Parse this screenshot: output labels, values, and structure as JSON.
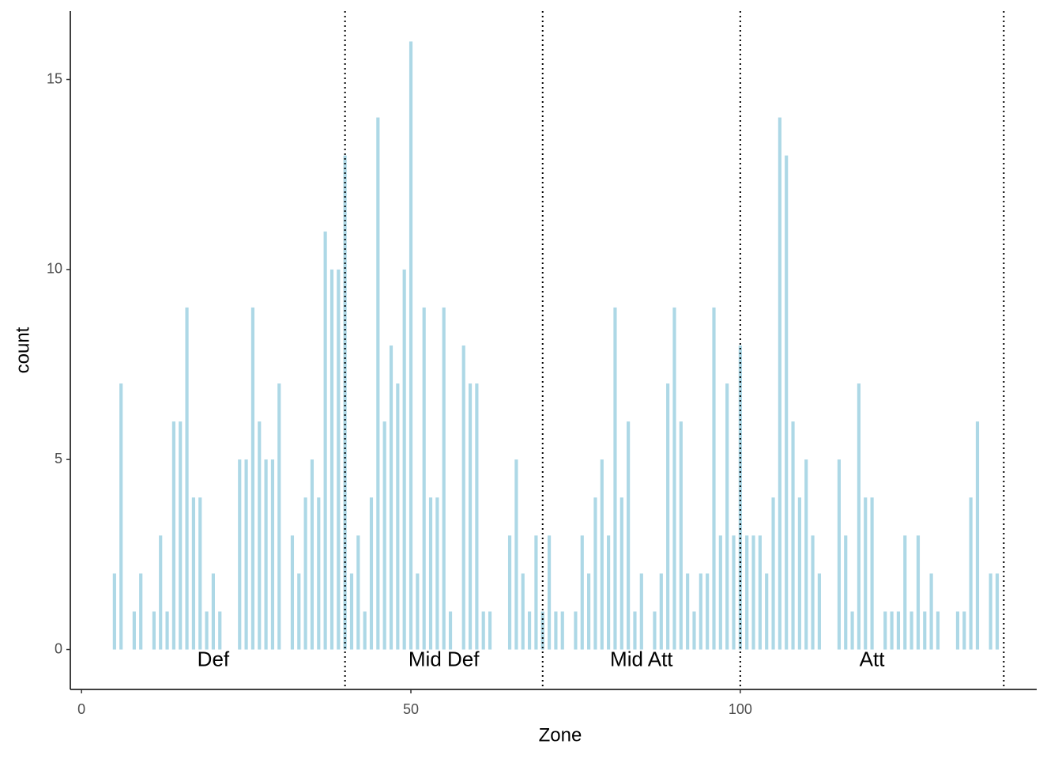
{
  "chart_data": {
    "type": "bar",
    "x_label": "Zone",
    "y_label": "count",
    "color": "#add8e6",
    "x": [
      5,
      6,
      8,
      9,
      11,
      12,
      13,
      14,
      15,
      16,
      17,
      18,
      19,
      20,
      21,
      24,
      25,
      26,
      27,
      28,
      29,
      30,
      32,
      33,
      34,
      35,
      36,
      37,
      38,
      39,
      40,
      41,
      42,
      43,
      44,
      45,
      46,
      47,
      48,
      49,
      50,
      51,
      52,
      53,
      54,
      55,
      56,
      58,
      59,
      60,
      61,
      62,
      65,
      66,
      67,
      68,
      69,
      70,
      71,
      72,
      73,
      75,
      76,
      77,
      78,
      79,
      80,
      81,
      82,
      83,
      84,
      85,
      87,
      88,
      89,
      90,
      91,
      92,
      93,
      94,
      95,
      96,
      97,
      98,
      99,
      100,
      101,
      102,
      103,
      104,
      105,
      106,
      107,
      108,
      109,
      110,
      111,
      112,
      115,
      116,
      117,
      118,
      119,
      120,
      122,
      123,
      124,
      125,
      126,
      127,
      128,
      129,
      130,
      133,
      134,
      135,
      136,
      138,
      139
    ],
    "values": [
      2,
      7,
      1,
      2,
      1,
      3,
      1,
      6,
      6,
      9,
      4,
      4,
      1,
      2,
      1,
      5,
      5,
      9,
      6,
      5,
      5,
      7,
      3,
      2,
      4,
      5,
      4,
      11,
      10,
      10,
      13,
      2,
      3,
      1,
      4,
      14,
      6,
      8,
      7,
      10,
      16,
      2,
      9,
      4,
      4,
      9,
      1,
      8,
      7,
      7,
      1,
      1,
      3,
      5,
      2,
      1,
      3,
      1,
      3,
      1,
      1,
      1,
      3,
      2,
      4,
      5,
      3,
      9,
      4,
      6,
      1,
      2,
      1,
      2,
      7,
      9,
      6,
      2,
      1,
      2,
      2,
      9,
      3,
      7,
      3,
      8,
      3,
      3,
      3,
      2,
      4,
      14,
      13,
      6,
      4,
      5,
      3,
      2,
      5,
      3,
      1,
      7,
      4,
      4,
      1,
      1,
      1,
      3,
      1,
      3,
      1,
      2,
      1,
      1,
      1,
      4,
      6,
      2,
      2
    ],
    "vlines": [
      40,
      70,
      100,
      140
    ],
    "annotations": [
      {
        "text": "Def",
        "x": 20
      },
      {
        "text": "Mid Def",
        "x": 55
      },
      {
        "text": "Mid Att",
        "x": 85
      },
      {
        "text": "Att",
        "x": 120
      }
    ],
    "xlim": [
      -1.7,
      145
    ],
    "ylim": [
      -1.05,
      16.8
    ],
    "xticks": [
      0,
      50,
      100
    ],
    "yticks": [
      0,
      5,
      10,
      15
    ],
    "grid": false
  }
}
